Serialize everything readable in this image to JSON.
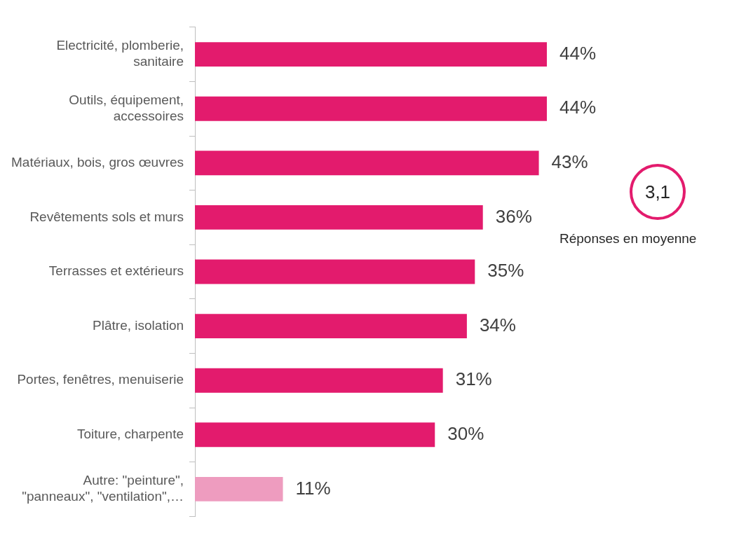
{
  "chart_data": {
    "type": "bar",
    "orientation": "horizontal",
    "categories": [
      "Electricité, plomberie, sanitaire",
      "Outils, équipement, accessoires",
      "Matériaux, bois, gros œuvres",
      "Revêtements sols et murs",
      "Terrasses et extérieurs",
      "Plâtre, isolation",
      "Portes, fenêtres, menuiserie",
      "Toiture, charpente",
      "Autre: \"peinture\", \"panneaux\", \"ventilation\",…"
    ],
    "values": [
      44,
      44,
      43,
      36,
      35,
      34,
      31,
      30,
      11
    ],
    "colors": [
      "#e31b6d",
      "#e31b6d",
      "#e31b6d",
      "#e31b6d",
      "#e31b6d",
      "#e31b6d",
      "#e31b6d",
      "#e31b6d",
      "#ee9cbf"
    ],
    "value_labels": [
      "44%",
      "44%",
      "43%",
      "36%",
      "35%",
      "34%",
      "31%",
      "30%",
      "11%"
    ],
    "annotations": [
      "3,1",
      "Réponses en moyenne"
    ],
    "grid": false,
    "legend": false
  }
}
